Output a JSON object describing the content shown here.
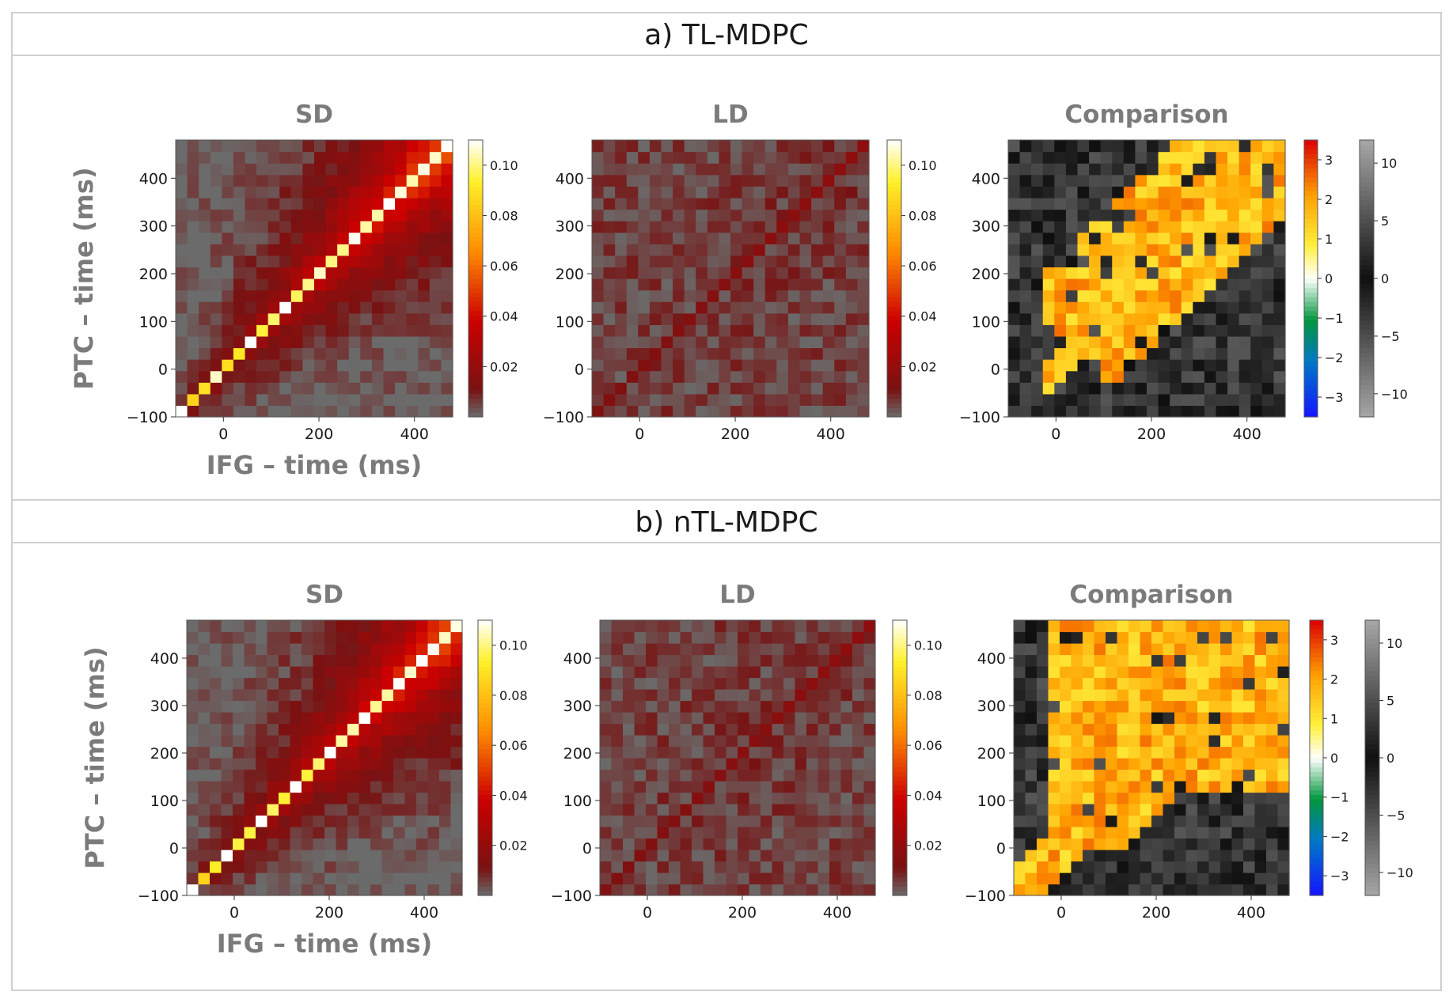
{
  "sections": [
    {
      "label": "a)   TL-MDPC"
    },
    {
      "label": "b)   nTL-MDPC"
    }
  ],
  "chart_data": [
    {
      "type": "heatmap",
      "section": "a",
      "title": "SD",
      "xlabel": "IFG – time (ms)",
      "ylabel": "PTC – time (ms)",
      "xlim": [
        -100,
        480
      ],
      "ylim": [
        -100,
        480
      ],
      "xticks": [
        0,
        200,
        400
      ],
      "yticks": [
        -100,
        0,
        100,
        200,
        300,
        400
      ],
      "grid_bins": 24,
      "bin_width_ms": 24,
      "pattern": "strong-diagonal",
      "colormap": "gray-red-yellow-white",
      "colorbar": {
        "min": 0,
        "max": 0.11,
        "ticks": [
          "0.10",
          "0.08",
          "0.06",
          "0.04",
          "0.02"
        ],
        "tick_values": [
          0.1,
          0.08,
          0.06,
          0.04,
          0.02
        ]
      }
    },
    {
      "type": "heatmap",
      "section": "a",
      "title": "LD",
      "xlabel": "",
      "ylabel": "",
      "xlim": [
        -100,
        480
      ],
      "ylim": [
        -100,
        480
      ],
      "xticks": [
        0,
        200,
        400
      ],
      "yticks": [
        -100,
        0,
        100,
        200,
        300,
        400
      ],
      "grid_bins": 24,
      "bin_width_ms": 24,
      "pattern": "weak-diagonal",
      "colormap": "gray-red-yellow-white",
      "colorbar": {
        "min": 0,
        "max": 0.11,
        "ticks": [
          "0.10",
          "0.08",
          "0.06",
          "0.04",
          "0.02"
        ],
        "tick_values": [
          0.1,
          0.08,
          0.06,
          0.04,
          0.02
        ]
      }
    },
    {
      "type": "heatmap",
      "section": "a",
      "title": "Comparison",
      "xlabel": "",
      "ylabel": "",
      "xlim": [
        -100,
        480
      ],
      "ylim": [
        -100,
        480
      ],
      "xticks": [
        0,
        200,
        400
      ],
      "yticks": [
        -100,
        0,
        100,
        200,
        300,
        400
      ],
      "grid_bins": 24,
      "bin_width_ms": 24,
      "pattern": "significance-wedge",
      "colormap": "diverging-significance",
      "colorbar": {
        "min": -3.5,
        "max": 3.5,
        "ticks": [
          "3",
          "2",
          "1",
          "0",
          "−1",
          "−2",
          "−3"
        ],
        "tick_values": [
          3,
          2,
          1,
          0,
          -1,
          -2,
          -3
        ]
      },
      "colorbar2": {
        "min": -12,
        "max": 12,
        "ticks": [
          "10",
          "5",
          "0",
          "−5",
          "−10"
        ],
        "tick_values": [
          10,
          5,
          0,
          -5,
          -10
        ]
      }
    },
    {
      "type": "heatmap",
      "section": "b",
      "title": "SD",
      "xlabel": "IFG – time (ms)",
      "ylabel": "PTC – time (ms)",
      "xlim": [
        -100,
        480
      ],
      "ylim": [
        -100,
        480
      ],
      "xticks": [
        0,
        200,
        400
      ],
      "yticks": [
        -100,
        0,
        100,
        200,
        300,
        400
      ],
      "grid_bins": 24,
      "bin_width_ms": 24,
      "pattern": "strong-diagonal",
      "colormap": "gray-red-yellow-white",
      "colorbar": {
        "min": 0,
        "max": 0.11,
        "ticks": [
          "0.10",
          "0.08",
          "0.06",
          "0.04",
          "0.02"
        ],
        "tick_values": [
          0.1,
          0.08,
          0.06,
          0.04,
          0.02
        ]
      }
    },
    {
      "type": "heatmap",
      "section": "b",
      "title": "LD",
      "xlabel": "",
      "ylabel": "",
      "xlim": [
        -100,
        480
      ],
      "ylim": [
        -100,
        480
      ],
      "xticks": [
        0,
        200,
        400
      ],
      "yticks": [
        -100,
        0,
        100,
        200,
        300,
        400
      ],
      "grid_bins": 24,
      "bin_width_ms": 24,
      "pattern": "weak-diagonal",
      "colormap": "gray-red-yellow-white",
      "colorbar": {
        "min": 0,
        "max": 0.11,
        "ticks": [
          "0.10",
          "0.08",
          "0.06",
          "0.04",
          "0.02"
        ],
        "tick_values": [
          0.1,
          0.08,
          0.06,
          0.04,
          0.02
        ]
      }
    },
    {
      "type": "heatmap",
      "section": "b",
      "title": "Comparison",
      "xlabel": "",
      "ylabel": "",
      "xlim": [
        -100,
        480
      ],
      "ylim": [
        -100,
        480
      ],
      "xticks": [
        0,
        200,
        400
      ],
      "yticks": [
        -100,
        0,
        100,
        200,
        300,
        400
      ],
      "grid_bins": 24,
      "bin_width_ms": 24,
      "pattern": "significance-wide",
      "colormap": "diverging-significance",
      "colorbar": {
        "min": -3.5,
        "max": 3.5,
        "ticks": [
          "3",
          "2",
          "1",
          "0",
          "−1",
          "−2",
          "−3"
        ],
        "tick_values": [
          3,
          2,
          1,
          0,
          -1,
          -2,
          -3
        ]
      },
      "colorbar2": {
        "min": -12,
        "max": 12,
        "ticks": [
          "10",
          "5",
          "0",
          "−5",
          "−10"
        ],
        "tick_values": [
          10,
          5,
          0,
          -5,
          -10
        ]
      }
    }
  ],
  "colors": {
    "gray_floor": "#6b6b6b",
    "border": "#cfcfcf",
    "title_gray": "#7b7b7b"
  }
}
